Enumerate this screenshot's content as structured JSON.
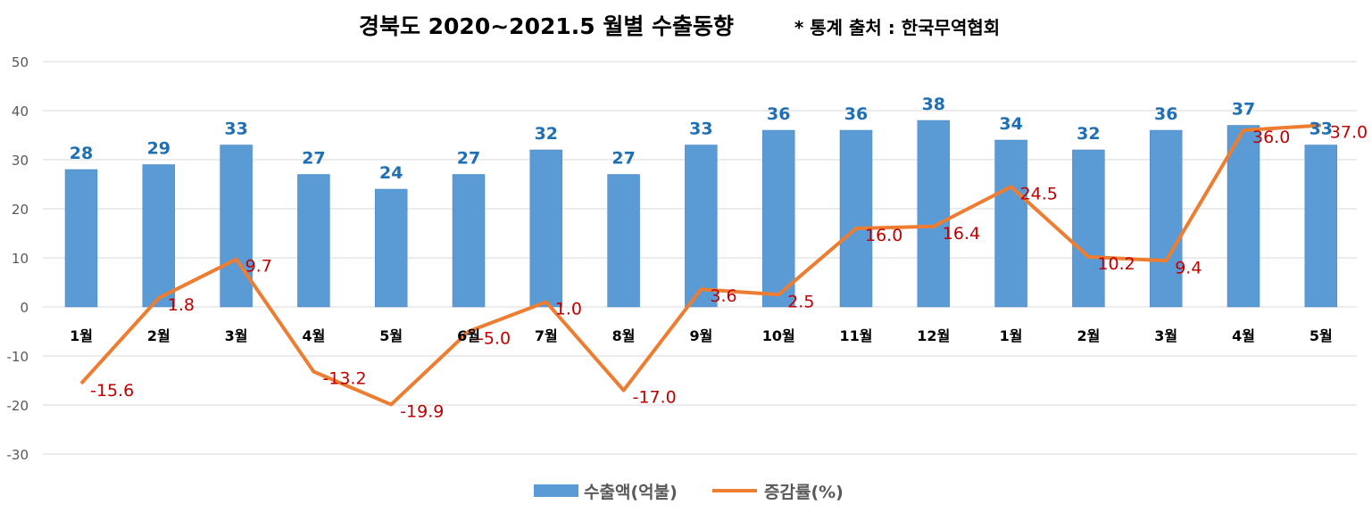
{
  "chart_data": {
    "type": "bar",
    "title": "경북도 2020~2021.5 월별 수출동향",
    "subtitle": "* 통계 출처 : 한국무역협회",
    "categories": [
      "1월",
      "2월",
      "3월",
      "4월",
      "5월",
      "6월",
      "7월",
      "8월",
      "9월",
      "10월",
      "11월",
      "12월",
      "1월",
      "2월",
      "3월",
      "4월",
      "5월"
    ],
    "series": [
      {
        "name": "수출액(억불)",
        "type": "bar",
        "color": "#5B9BD5",
        "label_color": "#1F6FB5",
        "values": [
          28,
          29,
          33,
          27,
          24,
          27,
          32,
          27,
          33,
          36,
          36,
          38,
          34,
          32,
          36,
          37,
          33
        ]
      },
      {
        "name": "증감률(%)",
        "type": "line",
        "color": "#ED7D31",
        "label_color": "#C00000",
        "values": [
          -15.6,
          1.8,
          9.7,
          -13.2,
          -19.9,
          -5.0,
          1.0,
          -17.0,
          3.6,
          2.5,
          16.0,
          16.4,
          24.5,
          10.2,
          9.4,
          36.0,
          37.0
        ]
      }
    ],
    "yticks": [
      50,
      40,
      30,
      20,
      10,
      0,
      -10,
      -20,
      -30
    ],
    "ylim": [
      -30,
      50
    ],
    "grid": true,
    "legend": "bottom"
  }
}
